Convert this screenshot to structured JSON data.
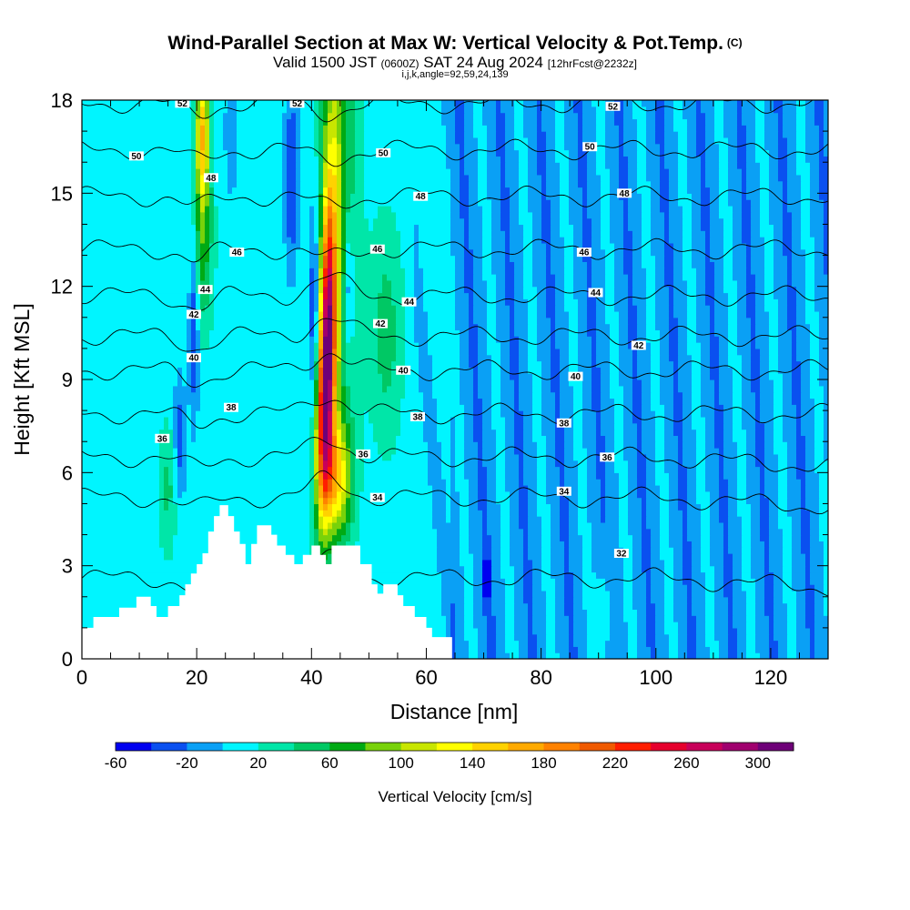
{
  "header": {
    "title": "Wind-Parallel Section at Max W: Vertical Velocity & Pot.Temp.",
    "copyright": "(C)",
    "valid_main": "Valid 1500 JST",
    "valid_zulu": "(0600Z)",
    "valid_date": "SAT 24 Aug 2024",
    "forecast": "[12hrFcst@2232z]",
    "params": "i,j,k,angle=92,59,24,139"
  },
  "chart_data": {
    "type": "heatmap",
    "xlabel": "Distance [nm]",
    "ylabel": "Height [Kft MSL]",
    "xlim": [
      0,
      130
    ],
    "ylim": [
      0,
      18
    ],
    "x_ticks": [
      0,
      20,
      40,
      60,
      80,
      100,
      120
    ],
    "y_ticks": [
      0,
      3,
      6,
      9,
      12,
      15,
      18
    ],
    "colorbar": {
      "label": "Vertical Velocity [cm/s]",
      "bounds": [
        -60,
        -40,
        -20,
        0,
        20,
        40,
        60,
        80,
        100,
        120,
        140,
        160,
        180,
        200,
        220,
        240,
        260,
        280,
        300,
        320
      ],
      "tick_labels": [
        "-60",
        "-20",
        "20",
        "60",
        "100",
        "140",
        "180",
        "220",
        "260",
        "300"
      ],
      "colors": [
        "#0000f0",
        "#0a50f0",
        "#0aa0f5",
        "#00f5ff",
        "#00e6a8",
        "#00c864",
        "#00aa14",
        "#78d20a",
        "#c8e600",
        "#ffff00",
        "#ffd200",
        "#ffaa00",
        "#ff8200",
        "#f05a00",
        "#ff1e00",
        "#e6002d",
        "#c8005a",
        "#a0006e",
        "#6e0078"
      ]
    },
    "background_updraft_cms": 10,
    "broad_downdraft_region_nm": [
      64,
      130
    ],
    "updraft_cores": [
      {
        "x_nm": 42.5,
        "height_kft": [
          4,
          14
        ],
        "max_cms": 260
      },
      {
        "x_nm": 21,
        "height_kft": [
          14,
          18
        ],
        "max_cms": 140
      },
      {
        "x_nm": 45,
        "height_kft": [
          5,
          18
        ],
        "max_cms": 60
      }
    ],
    "terrain_kft": [
      [
        0,
        1
      ],
      [
        2,
        1
      ],
      [
        2,
        1.35
      ],
      [
        6.5,
        1.35
      ],
      [
        6.5,
        1.65
      ],
      [
        9.5,
        1.65
      ],
      [
        9.5,
        2
      ],
      [
        12,
        2
      ],
      [
        12,
        1.7
      ],
      [
        13,
        1.7
      ],
      [
        13,
        1.35
      ],
      [
        15,
        1.35
      ],
      [
        15,
        1.7
      ],
      [
        17,
        1.7
      ],
      [
        17,
        2.05
      ],
      [
        18,
        2.05
      ],
      [
        18,
        2.4
      ],
      [
        19,
        2.4
      ],
      [
        19,
        2.75
      ],
      [
        20,
        2.75
      ],
      [
        20,
        3.05
      ],
      [
        21,
        3.05
      ],
      [
        21,
        3.4
      ],
      [
        22,
        3.4
      ],
      [
        22,
        4.1
      ],
      [
        23,
        4.1
      ],
      [
        23,
        4.6
      ],
      [
        24,
        4.6
      ],
      [
        24,
        4.95
      ],
      [
        25.5,
        4.95
      ],
      [
        25.5,
        4.6
      ],
      [
        26.5,
        4.6
      ],
      [
        26.5,
        4.1
      ],
      [
        27.5,
        4.1
      ],
      [
        27.5,
        3.7
      ],
      [
        28.5,
        3.7
      ],
      [
        28.5,
        3.05
      ],
      [
        29.5,
        3.05
      ],
      [
        29.5,
        3.7
      ],
      [
        30.5,
        3.7
      ],
      [
        30.5,
        4.3
      ],
      [
        33,
        4.3
      ],
      [
        33,
        4.0
      ],
      [
        34,
        4.0
      ],
      [
        34,
        3.65
      ],
      [
        35.5,
        3.65
      ],
      [
        35.5,
        3.35
      ],
      [
        37,
        3.35
      ],
      [
        37,
        3.05
      ],
      [
        38.5,
        3.05
      ],
      [
        38.5,
        3.35
      ],
      [
        40,
        3.35
      ],
      [
        40,
        3.65
      ],
      [
        41.5,
        3.65
      ],
      [
        41.5,
        3.35
      ],
      [
        42.5,
        3.35
      ],
      [
        42.5,
        3.05
      ],
      [
        43.5,
        3.05
      ],
      [
        43.5,
        3.65
      ],
      [
        48.5,
        3.65
      ],
      [
        48.5,
        3.05
      ],
      [
        50.5,
        3.05
      ],
      [
        50.5,
        2.4
      ],
      [
        51.5,
        2.4
      ],
      [
        51.5,
        2.1
      ],
      [
        52.5,
        2.1
      ],
      [
        52.5,
        2.4
      ],
      [
        55,
        2.4
      ],
      [
        55,
        2.05
      ],
      [
        56,
        2.05
      ],
      [
        56,
        1.7
      ],
      [
        58,
        1.7
      ],
      [
        58,
        1.35
      ],
      [
        60,
        1.35
      ],
      [
        60,
        1.0
      ],
      [
        61,
        1.0
      ],
      [
        61,
        0.7
      ],
      [
        64.5,
        0.7
      ],
      [
        64.5,
        0
      ]
    ],
    "isentropes_kft": [
      {
        "theta_k": 32,
        "level_kft": 2.6
      },
      {
        "theta_k": 34,
        "level_kft": 5.2
      },
      {
        "theta_k": 36,
        "level_kft": 6.5
      },
      {
        "theta_k": 38,
        "level_kft": 7.9
      },
      {
        "theta_k": 40,
        "level_kft": 9.3
      },
      {
        "theta_k": 42,
        "level_kft": 10.4
      },
      {
        "theta_k": 44,
        "level_kft": 11.7
      },
      {
        "theta_k": 46,
        "level_kft": 13.2
      },
      {
        "theta_k": 48,
        "level_kft": 14.9
      },
      {
        "theta_k": 50,
        "level_kft": 16.4
      },
      {
        "theta_k": 52,
        "level_kft": 17.9
      }
    ],
    "contour_labels": [
      {
        "text": "52",
        "x": 17.5,
        "y": 17.9
      },
      {
        "text": "52",
        "x": 37.5,
        "y": 17.9
      },
      {
        "text": "52",
        "x": 92.5,
        "y": 17.8
      },
      {
        "text": "50",
        "x": 9.5,
        "y": 16.2
      },
      {
        "text": "50",
        "x": 52.5,
        "y": 16.3
      },
      {
        "text": "50",
        "x": 88.5,
        "y": 16.5
      },
      {
        "text": "48",
        "x": 22.5,
        "y": 15.5
      },
      {
        "text": "48",
        "x": 59,
        "y": 14.9
      },
      {
        "text": "48",
        "x": 94.5,
        "y": 15.0
      },
      {
        "text": "46",
        "x": 27,
        "y": 13.1
      },
      {
        "text": "46",
        "x": 51.5,
        "y": 13.2
      },
      {
        "text": "46",
        "x": 87.5,
        "y": 13.1
      },
      {
        "text": "44",
        "x": 21.5,
        "y": 11.9
      },
      {
        "text": "44",
        "x": 57,
        "y": 11.5
      },
      {
        "text": "44",
        "x": 89.5,
        "y": 11.8
      },
      {
        "text": "42",
        "x": 19.5,
        "y": 11.1
      },
      {
        "text": "42",
        "x": 52,
        "y": 10.8
      },
      {
        "text": "42",
        "x": 97,
        "y": 10.1
      },
      {
        "text": "40",
        "x": 19.5,
        "y": 9.7
      },
      {
        "text": "40",
        "x": 56,
        "y": 9.3
      },
      {
        "text": "40",
        "x": 86,
        "y": 9.1
      },
      {
        "text": "38",
        "x": 26,
        "y": 8.1
      },
      {
        "text": "38",
        "x": 58.5,
        "y": 7.8
      },
      {
        "text": "38",
        "x": 84,
        "y": 7.6
      },
      {
        "text": "36",
        "x": 14,
        "y": 7.1
      },
      {
        "text": "36",
        "x": 49,
        "y": 6.6
      },
      {
        "text": "36",
        "x": 91.5,
        "y": 6.5
      },
      {
        "text": "34",
        "x": 51.5,
        "y": 5.2
      },
      {
        "text": "34",
        "x": 84,
        "y": 5.4
      },
      {
        "text": "32",
        "x": 94,
        "y": 3.4
      }
    ]
  }
}
